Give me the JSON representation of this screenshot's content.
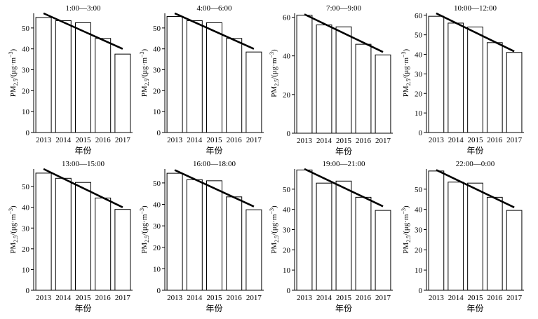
{
  "chart_data": [
    {
      "type": "bar",
      "title": "1:00—3:00",
      "categories": [
        "2013",
        "2014",
        "2015",
        "2016",
        "2017"
      ],
      "values": [
        55,
        53.5,
        52.5,
        45,
        37.5
      ],
      "trend": [
        57,
        40
      ],
      "xlabel": "年份",
      "ylabel": "PM2.5/(μg·m⁻³)",
      "ylim": [
        0,
        57
      ],
      "yticks": [
        0,
        10,
        20,
        30,
        40,
        50
      ]
    },
    {
      "type": "bar",
      "title": "4:00—6:00",
      "categories": [
        "2013",
        "2014",
        "2015",
        "2016",
        "2017"
      ],
      "values": [
        55.5,
        53.5,
        52.5,
        45,
        38.5
      ],
      "trend": [
        57,
        40
      ],
      "xlabel": "年份",
      "ylabel": "PM2.5/(μg·m⁻³)",
      "ylim": [
        0,
        57
      ],
      "yticks": [
        0,
        10,
        20,
        30,
        40,
        50
      ]
    },
    {
      "type": "bar",
      "title": "7:00—9:00",
      "categories": [
        "2013",
        "2014",
        "2015",
        "2016",
        "2017"
      ],
      "values": [
        61,
        56,
        55,
        46,
        40.5
      ],
      "trend": [
        61.5,
        42
      ],
      "xlabel": "年份",
      "ylabel": "PM2.5/(μg·m⁻³)",
      "ylim": [
        0,
        62
      ],
      "yticks": [
        0,
        20,
        40,
        60
      ]
    },
    {
      "type": "bar",
      "title": "10:00—12:00",
      "categories": [
        "2013",
        "2014",
        "2015",
        "2016",
        "2017"
      ],
      "values": [
        59.5,
        56,
        54,
        46,
        41
      ],
      "trend": [
        61,
        41.5
      ],
      "xlabel": "年份",
      "ylabel": "PM2.5/(μg·m⁻³)",
      "ylim": [
        0,
        61
      ],
      "yticks": [
        0,
        10,
        20,
        30,
        40,
        50,
        60
      ]
    },
    {
      "type": "bar",
      "title": "13:00—15:00",
      "categories": [
        "2013",
        "2014",
        "2015",
        "2016",
        "2017"
      ],
      "values": [
        56.5,
        54,
        52,
        44.5,
        39
      ],
      "trend": [
        58.5,
        40
      ],
      "xlabel": "年份",
      "ylabel": "PM2.5/(μg·m⁻³)",
      "ylim": [
        0,
        58.5
      ],
      "yticks": [
        0,
        10,
        20,
        30,
        40,
        50
      ]
    },
    {
      "type": "bar",
      "title": "16:00—18:00",
      "categories": [
        "2013",
        "2014",
        "2015",
        "2016",
        "2017"
      ],
      "values": [
        54.5,
        51.5,
        51,
        43.5,
        37.5
      ],
      "trend": [
        56,
        39
      ],
      "xlabel": "年份",
      "ylabel": "PM2.5/(μg·m⁻³)",
      "ylim": [
        0,
        56.5
      ],
      "yticks": [
        0,
        10,
        20,
        30,
        40,
        50
      ]
    },
    {
      "type": "bar",
      "title": "19:00—21:00",
      "categories": [
        "2013",
        "2014",
        "2015",
        "2016",
        "2017"
      ],
      "values": [
        59.5,
        53,
        54,
        46,
        39.5
      ],
      "trend": [
        60,
        41.5
      ],
      "xlabel": "年份",
      "ylabel": "PM2.5/(μg·m⁻³)",
      "ylim": [
        0,
        60
      ],
      "yticks": [
        0,
        10,
        20,
        30,
        40,
        50
      ]
    },
    {
      "type": "bar",
      "title": "22:00—0:00",
      "categories": [
        "2013",
        "2014",
        "2015",
        "2016",
        "2017"
      ],
      "values": [
        59,
        53.5,
        53,
        46,
        39.5
      ],
      "trend": [
        59.5,
        41
      ],
      "xlabel": "年份",
      "ylabel": "PM2.5/(μg·m⁻³)",
      "ylim": [
        0,
        60
      ],
      "yticks": [
        0,
        10,
        20,
        30,
        40,
        50
      ]
    }
  ]
}
